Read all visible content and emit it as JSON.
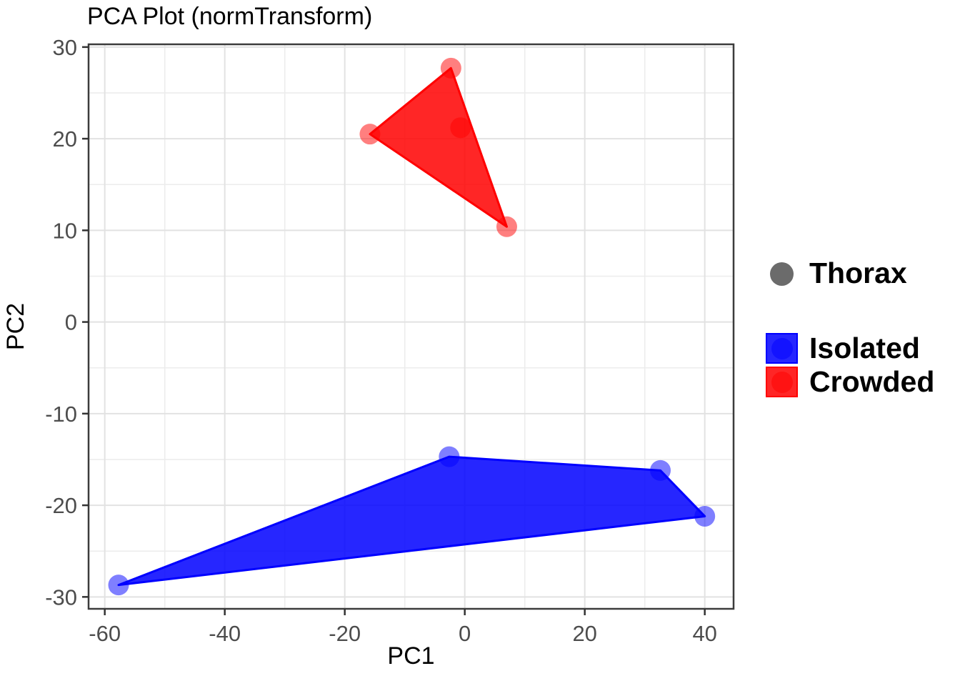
{
  "chart_data": {
    "type": "scatter",
    "title": "PCA Plot (normTransform)",
    "xlabel": "PC1",
    "ylabel": "PC2",
    "x_axis": {
      "domain": [
        -62.7,
        44.8
      ],
      "major_ticks": [
        -60,
        -40,
        -20,
        0,
        20,
        40
      ],
      "minor_ticks": [
        -50,
        -30,
        -10,
        10,
        30
      ]
    },
    "y_axis": {
      "domain": [
        -31.3,
        30.3
      ],
      "major_ticks": [
        -30,
        -20,
        -10,
        0,
        10,
        20,
        30
      ],
      "minor_ticks": [
        -25,
        -15,
        -5,
        5,
        15,
        25
      ]
    },
    "grid": true,
    "legend_position": "right",
    "series": [
      {
        "name": "Isolated",
        "color": "#0000ff",
        "points": [
          [
            -57.7,
            -28.7
          ],
          [
            -2.6,
            -14.7
          ],
          [
            32.6,
            -16.2
          ],
          [
            40,
            -21.2
          ]
        ],
        "hull": [
          [
            -57.7,
            -28.7
          ],
          [
            -2.6,
            -14.7
          ],
          [
            32.6,
            -16.2
          ],
          [
            40,
            -21.2
          ]
        ]
      },
      {
        "name": "Crowded",
        "color": "#ff0000",
        "points": [
          [
            -15.8,
            20.5
          ],
          [
            -2.3,
            27.7
          ],
          [
            -0.7,
            21.2
          ],
          [
            7,
            10.4
          ]
        ],
        "hull": [
          [
            -15.8,
            20.5
          ],
          [
            -2.3,
            27.7
          ],
          [
            7,
            10.4
          ]
        ]
      }
    ]
  },
  "legend": {
    "shape_item": {
      "label": "Thorax",
      "color": "#6b6b6b"
    },
    "fill_items": [
      {
        "label": "Isolated",
        "color": "#0000ff"
      },
      {
        "label": "Crowded",
        "color": "#ff0000"
      }
    ]
  }
}
